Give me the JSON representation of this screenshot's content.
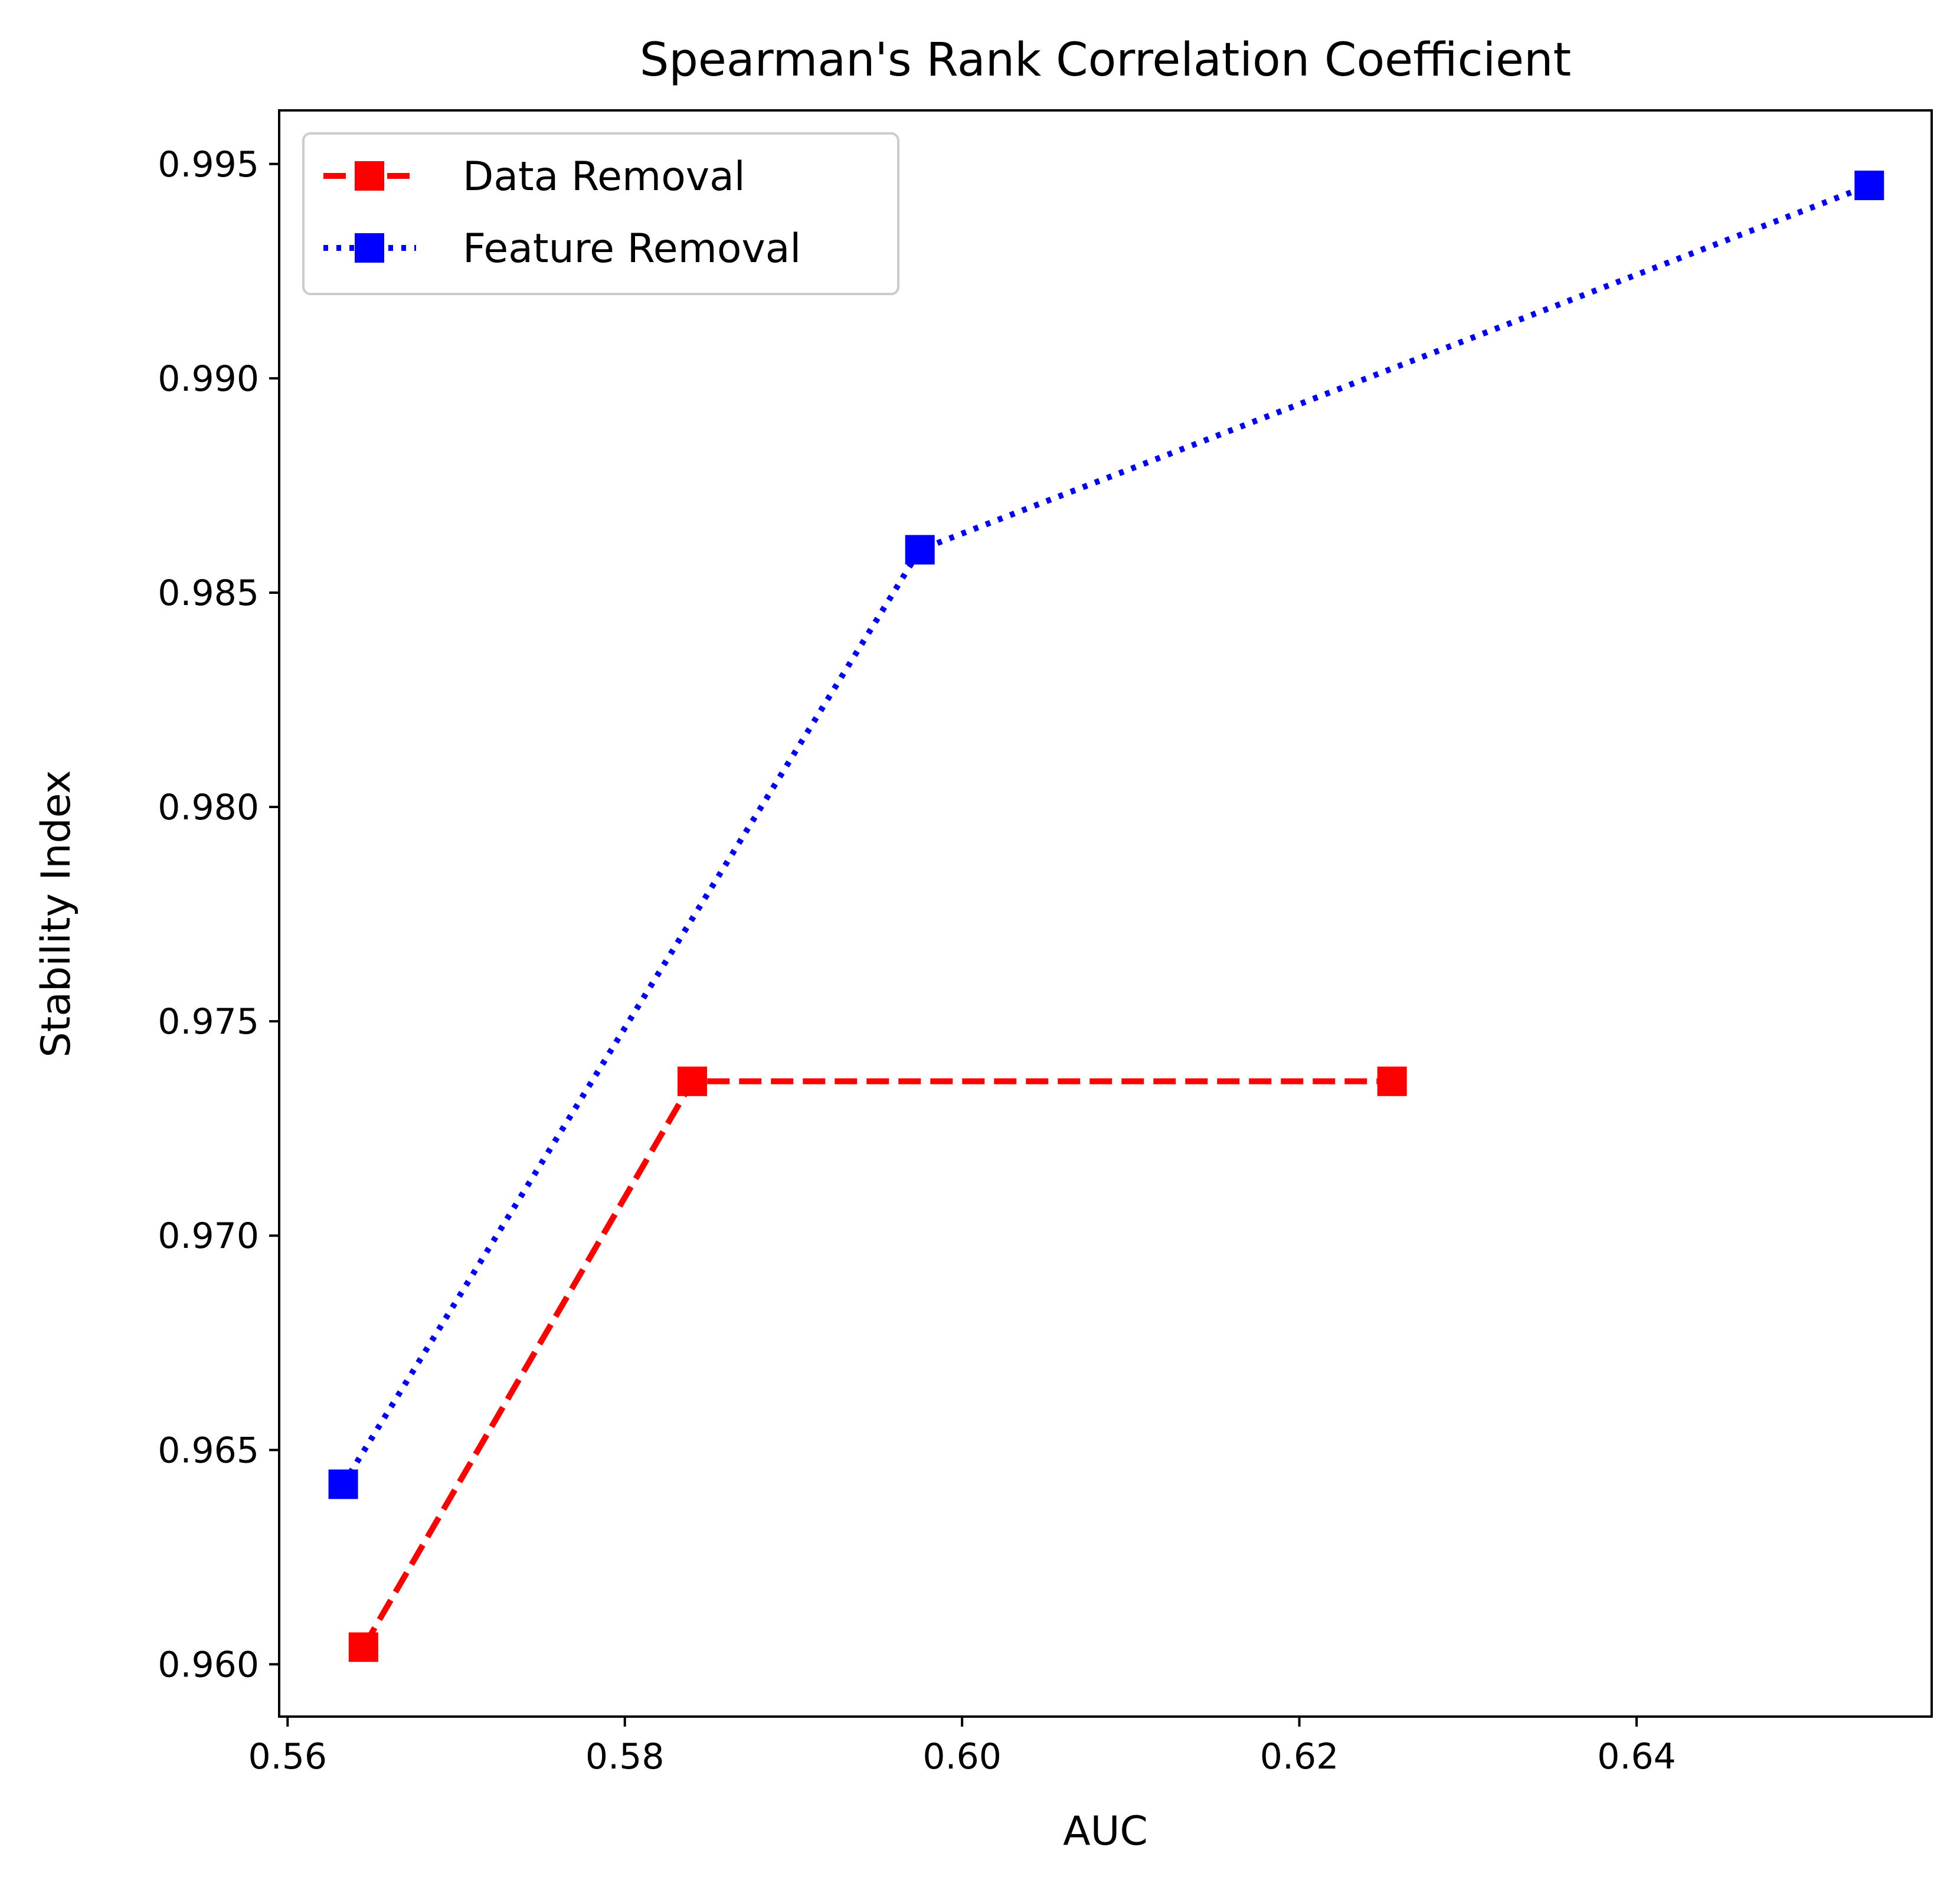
{
  "chart_data": {
    "type": "line",
    "title": "Spearman's Rank Correlation Coefficient",
    "xlabel": "AUC",
    "ylabel": "Stability Index",
    "xlim": [
      0.5595,
      0.6575
    ],
    "ylim": [
      0.95878,
      0.99625
    ],
    "xticks": [
      0.56,
      0.58,
      0.6,
      0.62,
      0.64
    ],
    "xtick_labels": [
      "0.56",
      "0.58",
      "0.60",
      "0.62",
      "0.64"
    ],
    "yticks": [
      0.96,
      0.965,
      0.97,
      0.975,
      0.98,
      0.985,
      0.99,
      0.995
    ],
    "ytick_labels": [
      "0.960",
      "0.965",
      "0.970",
      "0.975",
      "0.980",
      "0.985",
      "0.990",
      "0.995"
    ],
    "grid": false,
    "legend_position": "top-left",
    "series": [
      {
        "name": "Data Removal",
        "color": "#ff0000",
        "linestyle": "dashed",
        "marker": "square",
        "x": [
          0.5645,
          0.584,
          0.6255
        ],
        "y": [
          0.9604,
          0.9736,
          0.9736
        ]
      },
      {
        "name": "Feature Removal",
        "color": "#0000ff",
        "linestyle": "dotted",
        "marker": "square",
        "x": [
          0.5633,
          0.5975,
          0.6538
        ],
        "y": [
          0.9642,
          0.986,
          0.9945
        ]
      }
    ]
  }
}
